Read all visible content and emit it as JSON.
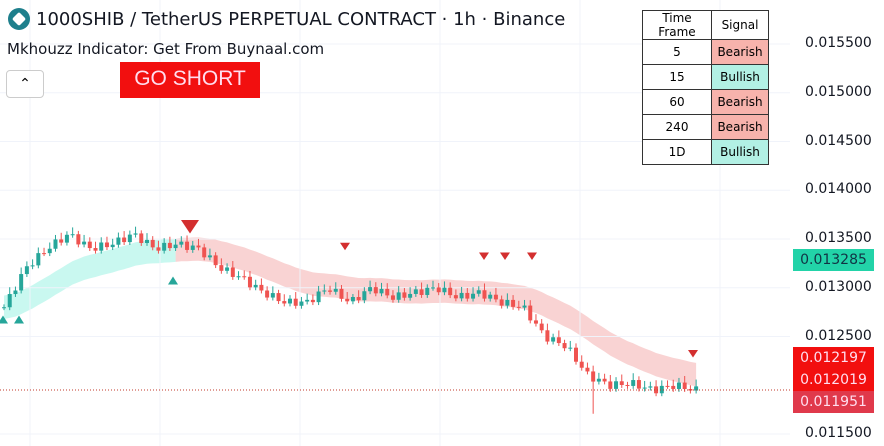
{
  "header": {
    "title": "1000SHIB / TetherUS PERPETUAL CONTRACT · 1h · Binance",
    "indicator": "Mkhouzz Indicator: Get From Buynaal.com",
    "collapse_icon": "chevron-up-icon"
  },
  "signal_banner": "GO SHORT",
  "signal_table": {
    "headers": [
      "Time Frame",
      "Signal"
    ],
    "rows": [
      [
        "5",
        "Bearish"
      ],
      [
        "15",
        "Bullish"
      ],
      [
        "60",
        "Bearish"
      ],
      [
        "240",
        "Bearish"
      ],
      [
        "1D",
        "Bullish"
      ]
    ]
  },
  "price_axis": {
    "ticks": [
      "0.015500",
      "0.015000",
      "0.014500",
      "0.014000",
      "0.013500",
      "0.013000",
      "0.012500",
      "0.011500"
    ]
  },
  "price_tags": [
    {
      "value": "0.013285",
      "color": "#22d3a8"
    },
    {
      "value": "0.012197",
      "color": "#f20f0f"
    },
    {
      "value": "0.012019",
      "color": "#f20f0f"
    },
    {
      "value": "0.011951",
      "color": "#e0394b"
    }
  ],
  "colors": {
    "up": "#26a69a",
    "down": "#ef5350",
    "bull_band": "#b2f5ea",
    "bear_band": "#f7c1c1",
    "marker": "#d32f2f"
  },
  "chart_data": {
    "type": "candlestick",
    "ylim": [
      0.0114,
      0.0157
    ],
    "path": [
      0.0128,
      0.0132,
      0.0134,
      0.01355,
      0.0134,
      0.01345,
      0.01355,
      0.0134,
      0.01345,
      0.0134,
      0.0132,
      0.0131,
      0.01295,
      0.01285,
      0.01285,
      0.013,
      0.01285,
      0.013,
      0.0129,
      0.01295,
      0.013,
      0.0129,
      0.01295,
      0.01285,
      0.0128,
      0.0125,
      0.0124,
      0.0121,
      0.012,
      0.01202,
      0.01195,
      0.012,
      0.01195
    ],
    "sell_markers": [
      0.0137,
      0.0134,
      0.0133,
      0.0133,
      0.0133,
      0.0123
    ],
    "buy_markers": [
      0.0129,
      0.0129,
      0.0133
    ]
  }
}
